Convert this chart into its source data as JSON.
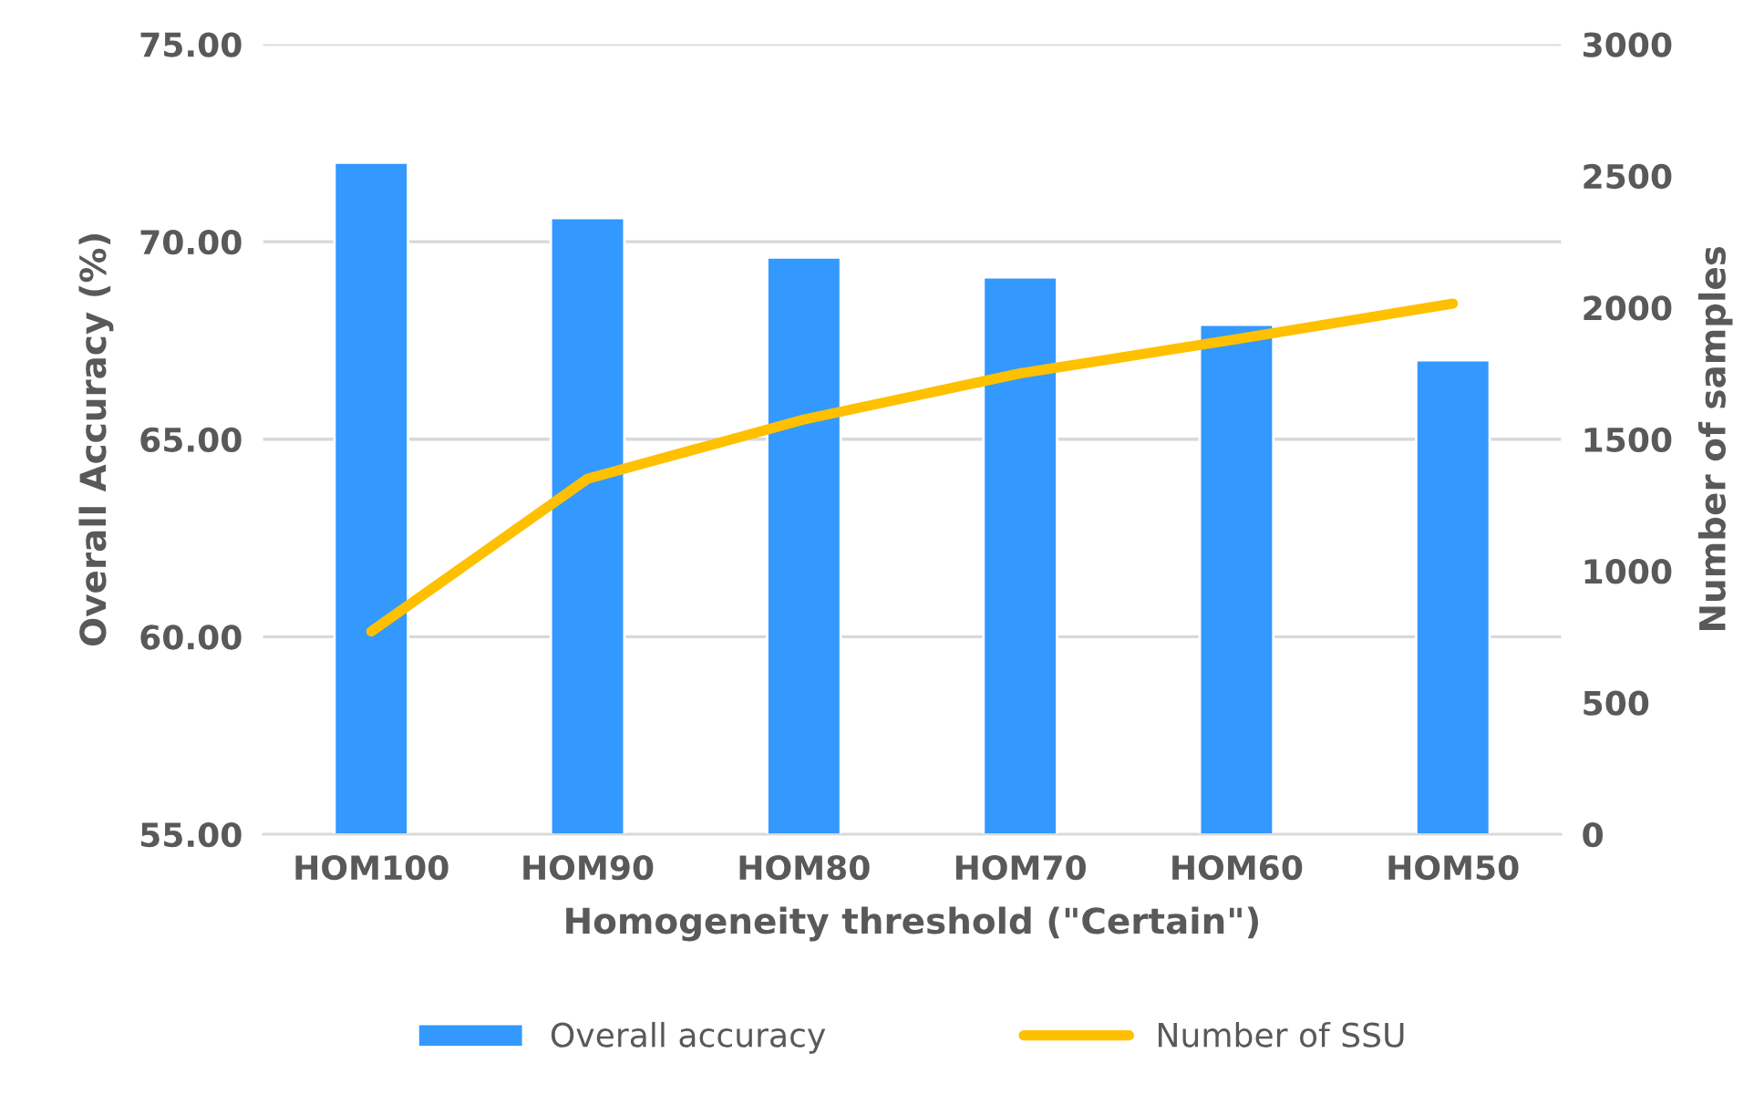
{
  "chart_data": {
    "type": "bar",
    "categories": [
      "HOM100",
      "HOM90",
      "HOM80",
      "HOM70",
      "HOM60",
      "HOM50"
    ],
    "xlabel": "Homogeneity threshold (\"Certain\")",
    "ylabel": "Overall Accuracy (%)",
    "y2label": "Number of samples",
    "series": [
      {
        "name": "Overall accuracy",
        "color": "#3399ff",
        "values": [
          72.0,
          70.6,
          69.6,
          69.1,
          67.9,
          67.0
        ]
      },
      {
        "name": "Number of SSU",
        "type": "line",
        "axis": "y2",
        "color": "#ffc000",
        "values": [
          770,
          1350,
          1575,
          1750,
          1880,
          2015
        ]
      }
    ],
    "ylim": [
      55,
      75
    ],
    "yticks": [
      {
        "value": 55,
        "label": "55.00"
      },
      {
        "value": 60,
        "label": "60.00"
      },
      {
        "value": 65,
        "label": "65.00"
      },
      {
        "value": 70,
        "label": "70.00"
      },
      {
        "value": 75,
        "label": "75.00"
      }
    ],
    "y2lim": [
      0,
      3000
    ],
    "y2ticks": [
      0,
      500,
      1000,
      1500,
      2000,
      2500,
      3000
    ],
    "grid": "y",
    "legend": "bottom",
    "marker": "none"
  }
}
